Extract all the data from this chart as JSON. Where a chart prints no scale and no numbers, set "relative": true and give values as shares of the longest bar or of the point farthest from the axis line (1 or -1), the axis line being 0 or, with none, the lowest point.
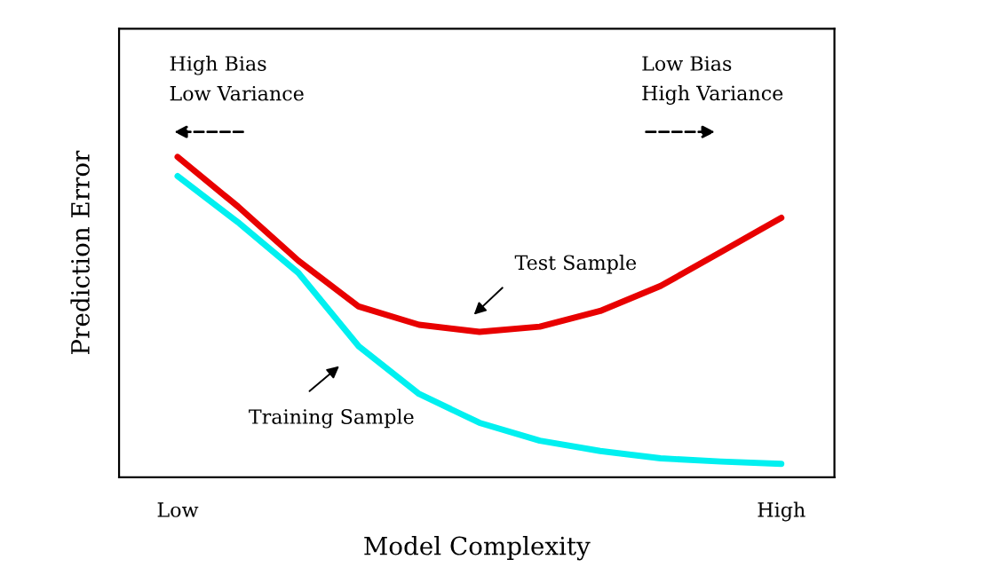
{
  "chart_data": {
    "type": "line",
    "relative": true,
    "xlabel": "Model Complexity",
    "ylabel": "Prediction Error",
    "categories": [
      "Low",
      null,
      null,
      null,
      null,
      null,
      null,
      null,
      null,
      null,
      "High"
    ],
    "series": [
      {
        "color": "#e80000",
        "values": [
          1.0,
          0.845,
          0.676,
          0.533,
          0.476,
          0.454,
          0.47,
          0.519,
          0.597,
          0.703,
          0.81
        ]
      },
      {
        "color": "#00f0f0",
        "values": [
          0.94,
          0.796,
          0.638,
          0.409,
          0.26,
          0.17,
          0.114,
          0.082,
          0.059,
          0.049,
          0.042
        ]
      }
    ],
    "annotations": [
      "High Bias\nLow Variance",
      "Low Bias\nHigh Variance",
      "Test Sample",
      "Training Sample"
    ],
    "grid": false,
    "legend": false
  }
}
